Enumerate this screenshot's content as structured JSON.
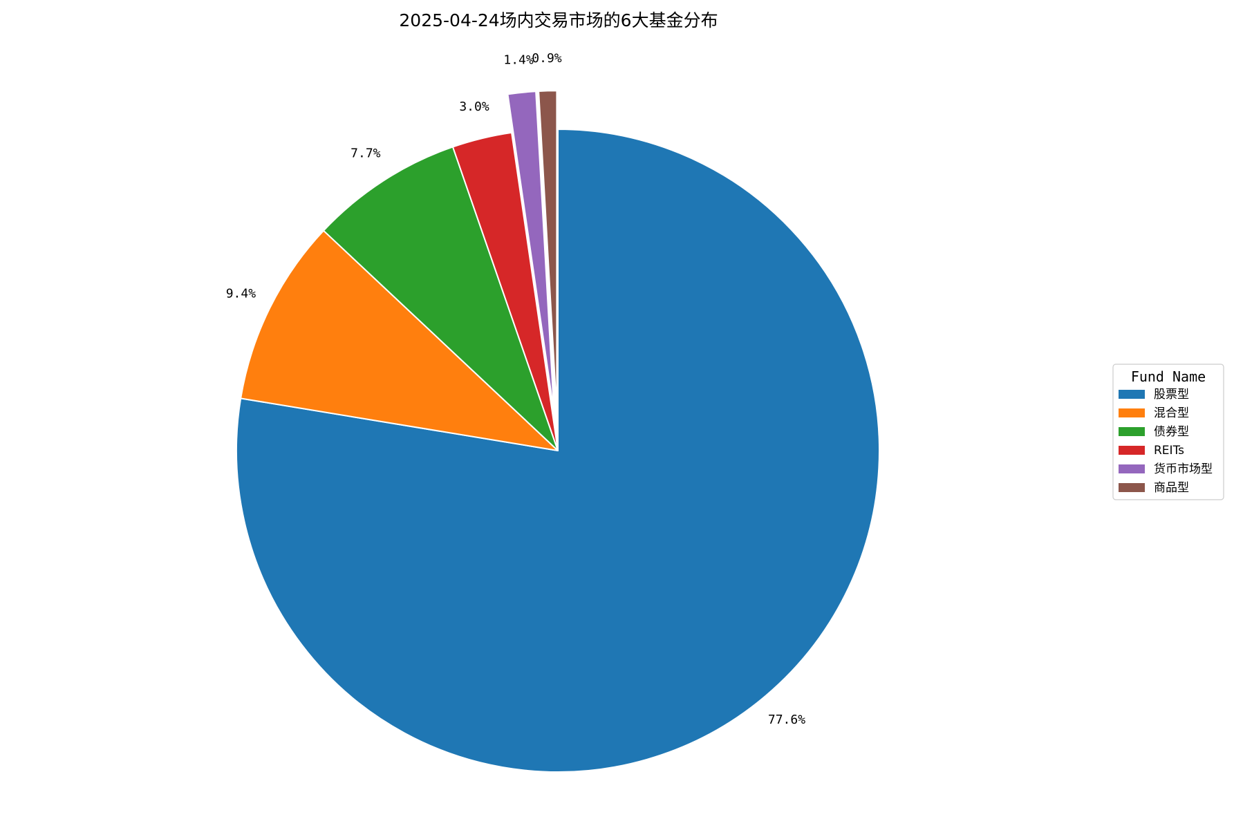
{
  "chart_data": {
    "type": "pie",
    "title": "2025-04-24场内交易市场的6大基金分布",
    "categories": [
      "股票型",
      "混合型",
      "债券型",
      "REITs",
      "货币市场型",
      "商品型"
    ],
    "values": [
      77.6,
      9.4,
      7.7,
      3.0,
      1.4,
      0.9
    ],
    "value_labels": [
      "77.6%",
      "9.4%",
      "7.7%",
      "3.0%",
      "1.4%",
      "0.9%"
    ],
    "colors": [
      "#1f77b4",
      "#ff7f0e",
      "#2ca02c",
      "#d62728",
      "#9467bd",
      "#8c564b"
    ],
    "exploded": [
      false,
      false,
      false,
      false,
      true,
      true
    ],
    "start_angle": "top",
    "direction": "clockwise",
    "legend": {
      "title": "Fund Name",
      "placement": "right-center"
    }
  }
}
